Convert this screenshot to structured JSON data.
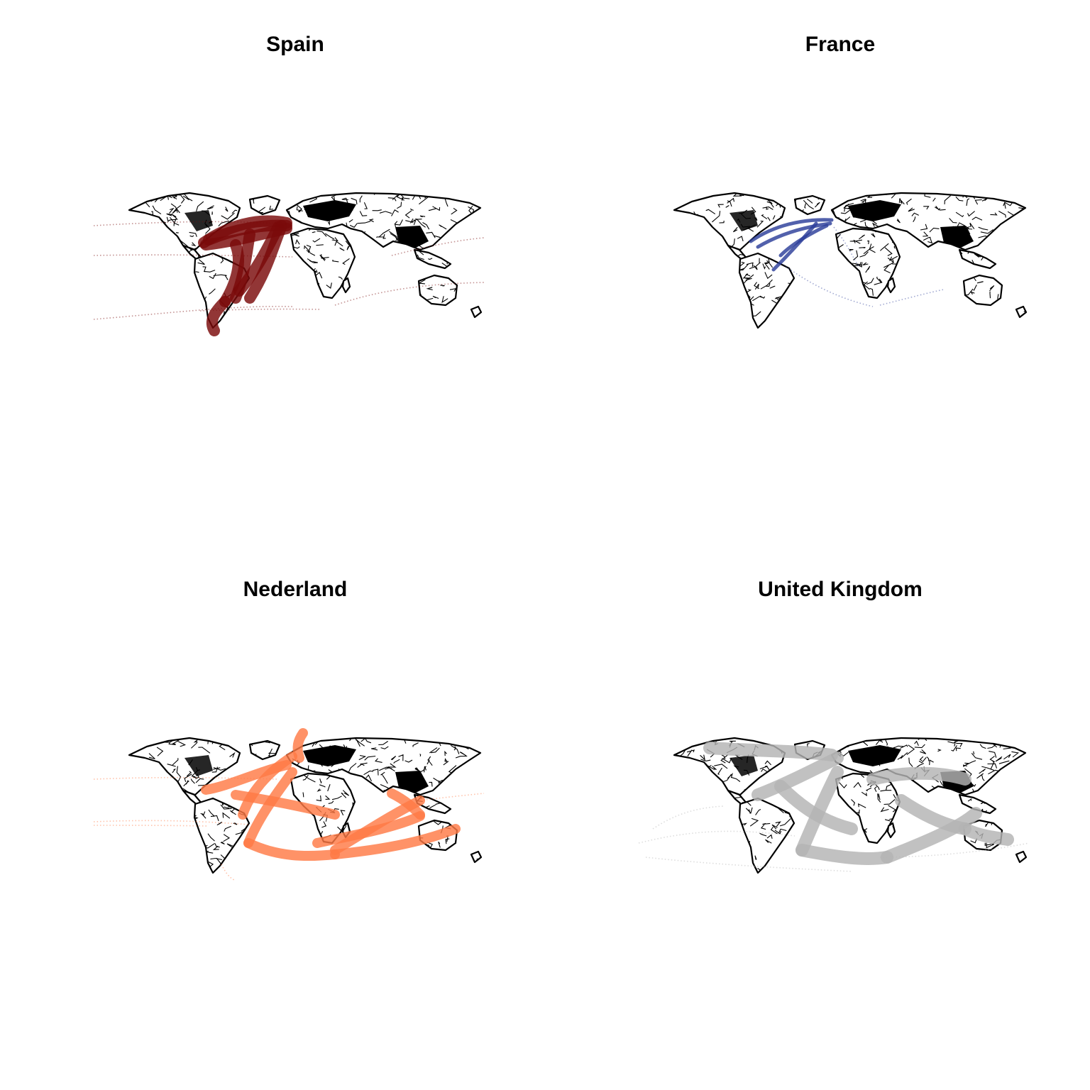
{
  "figure": {
    "panels": [
      {
        "title": "Spain",
        "color": "#7a0a0a"
      },
      {
        "title": "France",
        "color": "#2c3e9a"
      },
      {
        "title": "Nederland",
        "color": "#ff7a45"
      },
      {
        "title": "United Kingdom",
        "color": "#b3b3b3"
      }
    ]
  }
}
